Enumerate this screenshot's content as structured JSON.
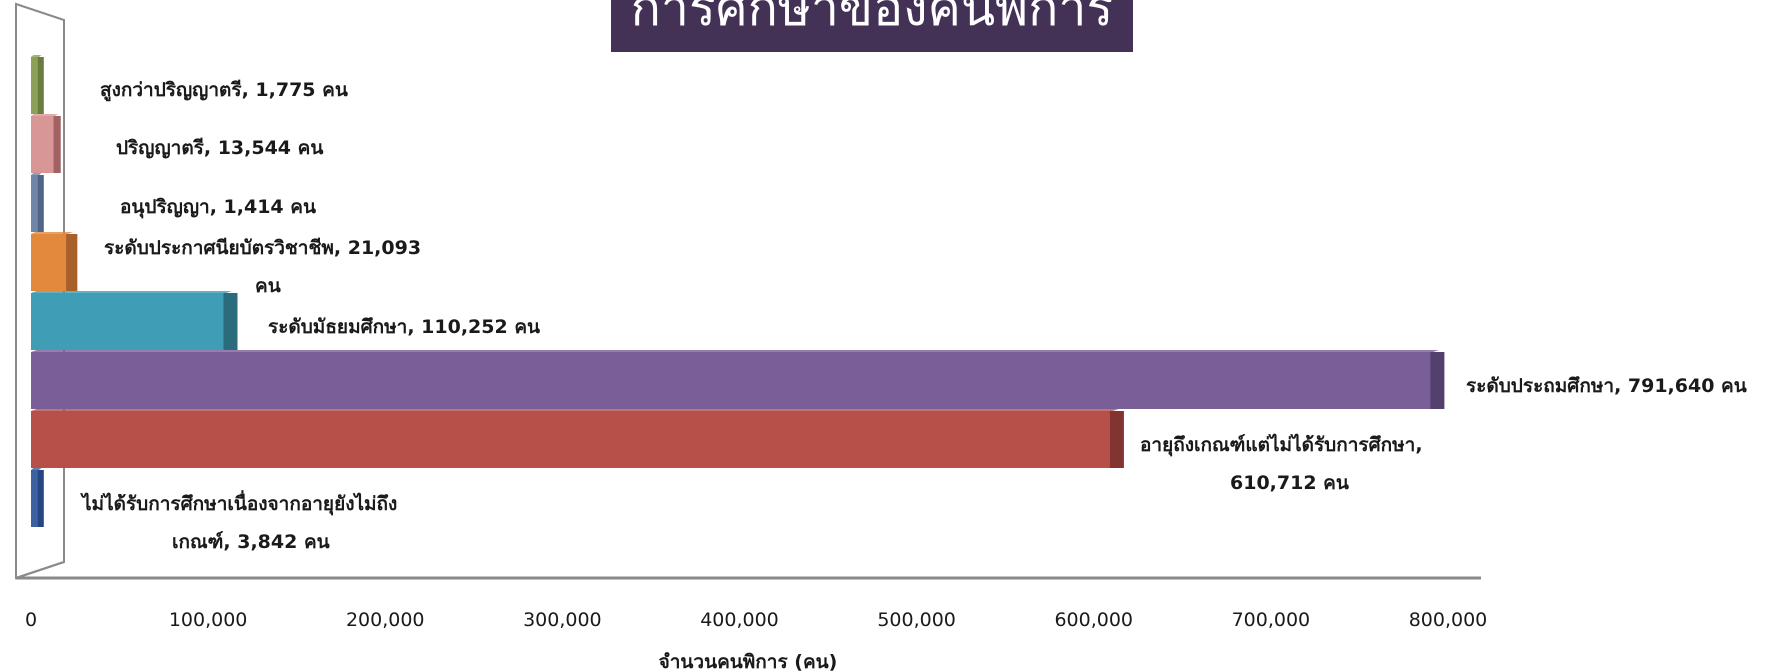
{
  "chart_data": {
    "type": "bar",
    "orientation": "horizontal",
    "title": "การศึกษาของคนพิการ",
    "xlabel": "จำนวนคนพิการ (คน)",
    "ylabel": "",
    "xlim": [
      0,
      800000
    ],
    "x_ticks": [
      "0",
      "100,000",
      "200,000",
      "300,000",
      "400,000",
      "500,000",
      "600,000",
      "700,000",
      "800,000"
    ],
    "grid": false,
    "legend": "none",
    "categories": [
      "สูงกว่าปริญญาตรี",
      "ปริญญาตรี",
      "อนุปริญญา",
      "ระดับประกาศนียบัตรวิชาชีพ",
      "ระดับมัธยมศึกษา",
      "ระดับประถมศึกษา",
      "อายุถึงเกณฑ์แต่ไม่ได้รับการศึกษา",
      "ไม่ได้รับการศึกษาเนื่องจากอายุยังไม่ถึงเกณฑ์"
    ],
    "values": [
      1775,
      13544,
      1414,
      21093,
      110252,
      791640,
      610712,
      3842
    ],
    "data_labels": [
      [
        "สูงกว่าปริญญาตรี, 1,775 คน"
      ],
      [
        "ปริญญาตรี, 13,544  คน"
      ],
      [
        "อนุปริญญา, 1,414  คน"
      ],
      [
        "ระดับประกาศนียบัตรวิชาชีพ, 21,093",
        "คน"
      ],
      [
        "ระดับมัธยมศึกษา, 110,252  คน"
      ],
      [
        "ระดับประถมศึกษา, 791,640  คน"
      ],
      [
        "อายุถึงเกณฑ์แต่ไม่ได้รับการศึกษา,",
        "610,712  คน"
      ],
      [
        "ไม่ได้รับการศึกษาเนื่องจากอายุยังไม่ถึง",
        "เกณฑ์, 3,842 คน"
      ]
    ],
    "colors": [
      "#8CA05A",
      "#D99696",
      "#6F86A8",
      "#E2893E",
      "#3F9DB5",
      "#7A5E98",
      "#B8504A",
      "#3A62A0"
    ],
    "side_colors": [
      "#6B7C40",
      "#A26262",
      "#4F6587",
      "#A7602A",
      "#2A6B7C",
      "#54406E",
      "#823530",
      "#254683"
    ]
  }
}
